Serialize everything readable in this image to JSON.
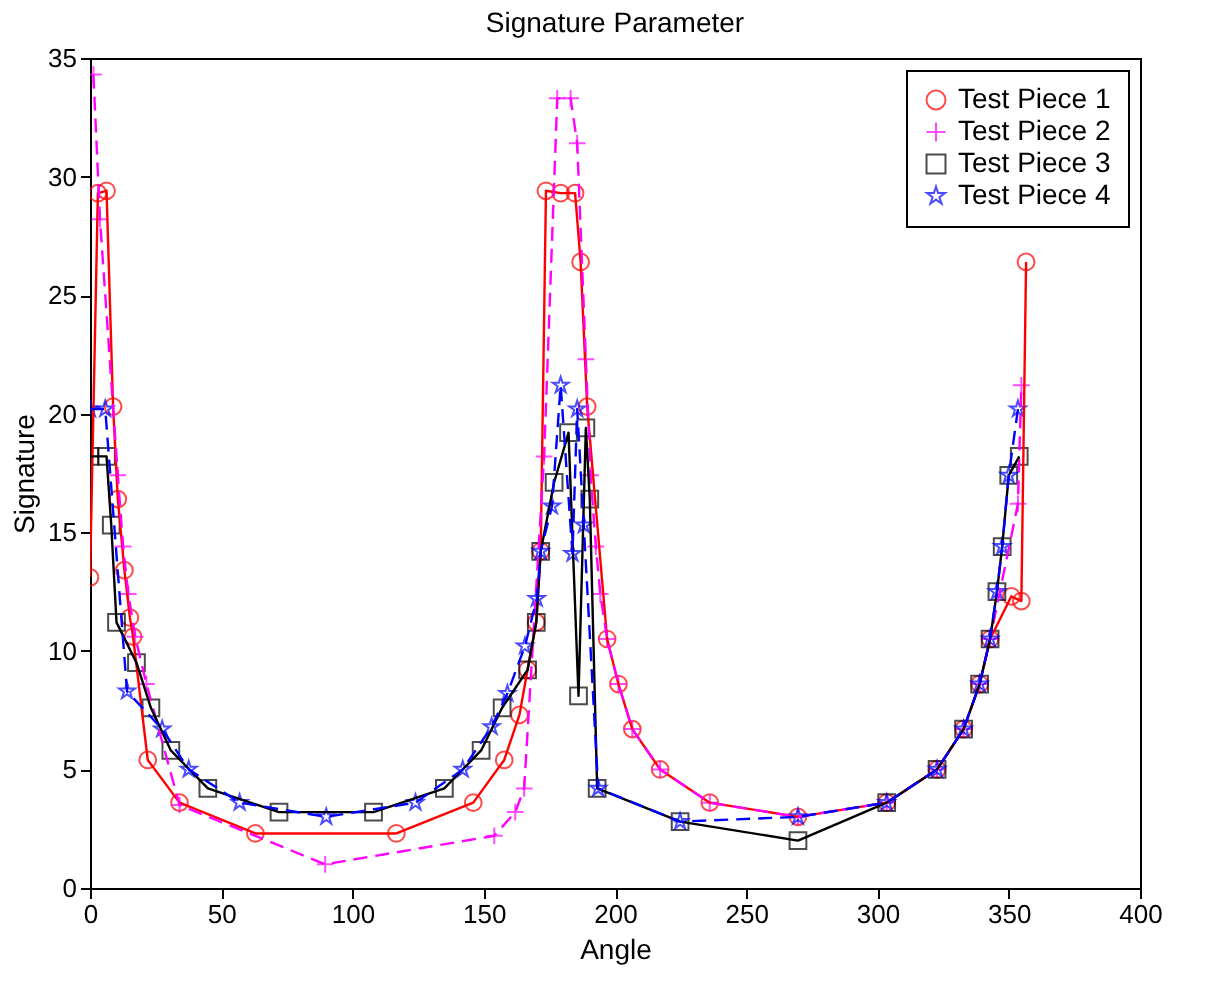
{
  "chart_data": {
    "type": "line",
    "title": "Signature Parameter",
    "xlabel": "Angle",
    "ylabel": "Signature",
    "xlim": [
      0,
      400
    ],
    "ylim": [
      0,
      35
    ],
    "xticks": [
      0,
      50,
      100,
      150,
      200,
      250,
      300,
      350,
      400
    ],
    "yticks": [
      0,
      5,
      10,
      15,
      20,
      25,
      30,
      35
    ],
    "grid": false,
    "legend": "top right",
    "series": [
      {
        "name": "Test Piece 1",
        "color": "#ff0000",
        "marker": "circle",
        "line_style": "solid",
        "x": [
          0,
          3,
          6.3,
          8.8,
          10.6,
          13.1,
          15.2,
          16.4,
          22,
          34.1,
          63,
          116.7,
          146,
          157.8,
          163.6,
          166.7,
          170,
          171.7,
          173.7,
          179.3,
          184.8,
          186.9,
          189.4,
          197,
          201.3,
          206.6,
          217.2,
          236.1,
          269.7,
          303.5,
          322.7,
          332.8,
          338.9,
          342.9,
          351,
          354.8,
          356.6
        ],
        "values": [
          13.1,
          29.3,
          29.4,
          20.3,
          16.4,
          13.4,
          11.4,
          10.6,
          5.4,
          3.6,
          2.3,
          2.3,
          3.6,
          5.4,
          7.3,
          9.2,
          11.2,
          14.2,
          29.4,
          29.3,
          29.3,
          26.4,
          20.3,
          10.5,
          8.6,
          6.7,
          5.0,
          3.6,
          3.0,
          3.6,
          5.0,
          6.7,
          8.6,
          10.5,
          12.3,
          12.1,
          26.4
        ]
      },
      {
        "name": "Test Piece 2",
        "color": "#ff00ff",
        "marker": "cross",
        "line_style": "dashed",
        "x": [
          1.3,
          3.8,
          10.6,
          12.6,
          14.6,
          17.2,
          21.5,
          34.1,
          89.6,
          154,
          162,
          165.4,
          173,
          178,
          183.1,
          185.6,
          188.9,
          190.7,
          192.7,
          194.4,
          197,
          201.3,
          206.6,
          217.2,
          236.1,
          269.7,
          303.5,
          322.7,
          332.8,
          338.9,
          342.9,
          353.5,
          354.8
        ],
        "values": [
          34.3,
          28.2,
          17.4,
          14.4,
          12.4,
          10.6,
          8.6,
          3.5,
          1.0,
          2.2,
          3.2,
          4.2,
          18.2,
          33.3,
          33.3,
          31.4,
          22.3,
          17.4,
          14.4,
          12.4,
          10.5,
          8.6,
          6.7,
          5.0,
          3.6,
          3.0,
          3.6,
          5.0,
          6.7,
          8.6,
          10.5,
          16.2,
          21.2
        ]
      },
      {
        "name": "Test Piece 3",
        "color": "#000000",
        "marker": "square",
        "line_style": "solid",
        "x": [
          0,
          6.3,
          8.1,
          10.1,
          17.7,
          23.2,
          30.8,
          44.9,
          72,
          108,
          135,
          149,
          157,
          166.7,
          170,
          171.7,
          176.8,
          182.3,
          186.1,
          188.9,
          190.4,
          193.2,
          224.8,
          269.7,
          303.5,
          322.7,
          332.8,
          338.9,
          342.9,
          345.5,
          347.5,
          350,
          354
        ],
        "values": [
          18.2,
          18.2,
          15.3,
          11.2,
          9.5,
          7.6,
          5.8,
          4.2,
          3.2,
          3.2,
          4.2,
          5.8,
          7.6,
          9.2,
          11.2,
          14.2,
          17.1,
          19.2,
          8.1,
          19.4,
          16.4,
          4.2,
          2.8,
          2.0,
          3.6,
          5.0,
          6.7,
          8.6,
          10.5,
          12.5,
          14.4,
          17.4,
          18.2
        ]
      },
      {
        "name": "Test Piece 4",
        "color": "#0000ff",
        "marker": "star",
        "line_style": "dashed",
        "x": [
          0,
          5.8,
          14.1,
          27.5,
          37.6,
          57,
          90,
          124,
          142,
          153,
          159,
          165.7,
          170.2,
          171.7,
          176,
          179.3,
          183.8,
          185.6,
          188.1,
          193.6,
          224.8,
          269.7,
          303.5,
          322.7,
          332.8,
          338.9,
          342.9,
          345.5,
          347.5,
          350,
          353.5
        ],
        "values": [
          20.2,
          20.2,
          8.3,
          6.7,
          5.0,
          3.6,
          3.0,
          3.6,
          5.0,
          6.8,
          8.2,
          10.2,
          12.2,
          14.2,
          16.1,
          21.2,
          14.1,
          20.2,
          15.3,
          4.2,
          2.8,
          3.0,
          3.6,
          5.0,
          6.7,
          8.6,
          10.5,
          12.5,
          14.4,
          17.4,
          20.2
        ]
      }
    ]
  }
}
